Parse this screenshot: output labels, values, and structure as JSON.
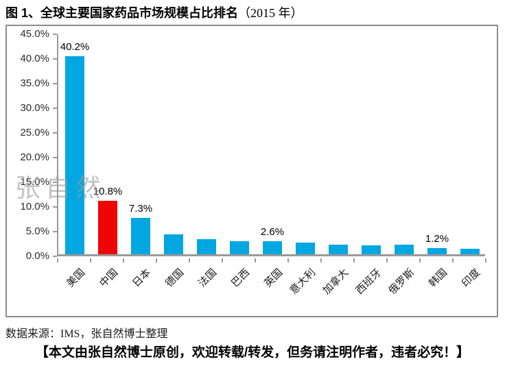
{
  "title": {
    "main": "图 1、全球主要国家药品市场规模占比排名",
    "suffix": "（2015 年）"
  },
  "watermark": "张自然",
  "footer": {
    "source": "数据来源：IMS，张自然博士整理",
    "notice": "【本文由张自然博士原创，欢迎转载/转发，但务请注明作者，违者必究！】"
  },
  "chart_data": {
    "type": "bar",
    "title": "全球主要国家药品市场规模占比排名（2015年）",
    "categories": [
      "美国",
      "中国",
      "日本",
      "德国",
      "法国",
      "巴西",
      "英国",
      "意大利",
      "加拿大",
      "西班牙",
      "俄罗斯",
      "韩国",
      "印度"
    ],
    "values": [
      40.2,
      10.8,
      7.3,
      4.0,
      3.0,
      2.7,
      2.6,
      2.3,
      2.0,
      1.8,
      1.9,
      1.2,
      1.1
    ],
    "value_labels": [
      "40.2%",
      "10.8%",
      "7.3%",
      "",
      "",
      "",
      "2.6%",
      "",
      "",
      "",
      "",
      "1.2%",
      ""
    ],
    "ytick_labels": [
      "0.0%",
      "5.0%",
      "10.0%",
      "15.0%",
      "20.0%",
      "25.0%",
      "30.0%",
      "35.0%",
      "40.0%",
      "45.0%"
    ],
    "ytick_step": 5,
    "ylim": [
      0,
      45
    ],
    "xlabel": "",
    "ylabel": "",
    "grid": false,
    "legend": false,
    "bar_color": "#00A7E1",
    "highlight_index": 1,
    "highlight_color": "#F00505",
    "axis_color": "#9a9a9a",
    "border_color": "#8c8c8c"
  }
}
